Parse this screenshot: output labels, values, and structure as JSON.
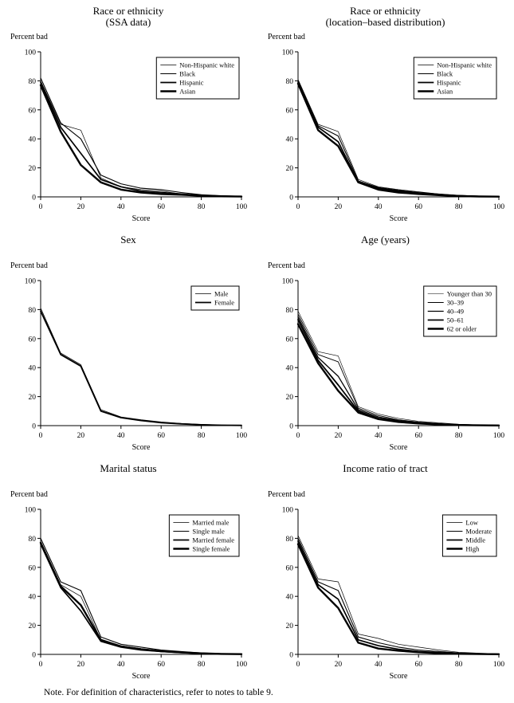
{
  "note": "Note. For definition of characteristics, refer to notes to table 9.",
  "axis": {
    "percent_label": "Percent bad",
    "score_label": "Score",
    "xticks": [
      0,
      20,
      40,
      60,
      80,
      100
    ],
    "yticks": [
      0,
      20,
      40,
      60,
      80,
      100
    ]
  },
  "chart_data": [
    {
      "type": "line",
      "title": "Race or ethnicity",
      "subtitle": "(SSA data)",
      "xlabel": "Score",
      "ylabel": "Percent bad",
      "xlim": [
        0,
        100
      ],
      "ylim": [
        0,
        100
      ],
      "grid": false,
      "legend_position": "top-right",
      "x": [
        0,
        10,
        20,
        30,
        40,
        50,
        60,
        70,
        80,
        90,
        100
      ],
      "series": [
        {
          "name": "Non-Hispanic white",
          "lw": 0.7,
          "values": [
            80,
            50,
            46,
            13,
            7,
            5,
            4,
            2,
            1,
            0.5,
            0.3
          ]
        },
        {
          "name": "Black",
          "lw": 1.1,
          "values": [
            82,
            51,
            40,
            15,
            9,
            6,
            5,
            3,
            1.5,
            0.8,
            0.4
          ]
        },
        {
          "name": "Hispanic",
          "lw": 1.7,
          "values": [
            79,
            48,
            30,
            12,
            7,
            4,
            3,
            2,
            1,
            0.5,
            0.2
          ]
        },
        {
          "name": "Asian",
          "lw": 2.4,
          "values": [
            77,
            45,
            22,
            10,
            5,
            3,
            2,
            1.5,
            0.8,
            0.4,
            0.2
          ]
        }
      ]
    },
    {
      "type": "line",
      "title": "Race or ethnicity",
      "subtitle": "(location–based distribution)",
      "xlabel": "Score",
      "ylabel": "Percent bad",
      "xlim": [
        0,
        100
      ],
      "ylim": [
        0,
        100
      ],
      "grid": false,
      "legend_position": "top-right",
      "x": [
        0,
        10,
        20,
        30,
        40,
        50,
        60,
        70,
        80,
        90,
        100
      ],
      "series": [
        {
          "name": "Non-Hispanic white",
          "lw": 0.7,
          "values": [
            81,
            50,
            45,
            12,
            7,
            5,
            3.5,
            2,
            1,
            0.5,
            0.3
          ]
        },
        {
          "name": "Black",
          "lw": 1.1,
          "values": [
            80,
            49,
            42,
            11,
            6.5,
            4.5,
            3,
            2,
            1,
            0.5,
            0.3
          ]
        },
        {
          "name": "Hispanic",
          "lw": 1.7,
          "values": [
            79,
            48,
            38,
            10,
            6,
            4,
            2.5,
            1.5,
            0.8,
            0.4,
            0.2
          ]
        },
        {
          "name": "Asian",
          "lw": 2.4,
          "values": [
            78,
            46,
            35,
            10,
            5,
            3,
            2,
            1.2,
            0.6,
            0.3,
            0.15
          ]
        }
      ]
    },
    {
      "type": "line",
      "title": "Sex",
      "subtitle": "",
      "xlabel": "Score",
      "ylabel": "Percent bad",
      "xlim": [
        0,
        100
      ],
      "ylim": [
        0,
        100
      ],
      "grid": false,
      "legend_position": "top-right",
      "x": [
        0,
        10,
        20,
        30,
        40,
        50,
        60,
        70,
        80,
        90,
        100
      ],
      "series": [
        {
          "name": "Male",
          "lw": 0.8,
          "values": [
            81,
            50,
            42,
            11,
            6,
            4,
            2.5,
            1.5,
            0.8,
            0.4,
            0.2
          ]
        },
        {
          "name": "Female",
          "lw": 1.8,
          "values": [
            79,
            49,
            41,
            10,
            5.5,
            3.5,
            2,
            1.2,
            0.6,
            0.3,
            0.15
          ]
        }
      ]
    },
    {
      "type": "line",
      "title": "Age (years)",
      "subtitle": "",
      "xlabel": "Score",
      "ylabel": "Percent bad",
      "xlim": [
        0,
        100
      ],
      "ylim": [
        0,
        100
      ],
      "grid": false,
      "legend_position": "top-right",
      "x": [
        0,
        10,
        20,
        30,
        40,
        50,
        60,
        70,
        80,
        90,
        100
      ],
      "series": [
        {
          "name": "Younger than 30",
          "lw": 0.6,
          "values": [
            79,
            51,
            48,
            13,
            8,
            5,
            3,
            2,
            1,
            0.5,
            0.3
          ]
        },
        {
          "name": "30–39",
          "lw": 0.9,
          "values": [
            77,
            49,
            44,
            12,
            7,
            4,
            2.5,
            1.5,
            0.8,
            0.4,
            0.2
          ]
        },
        {
          "name": "40–49",
          "lw": 1.3,
          "values": [
            75,
            47,
            34,
            11,
            6,
            3.5,
            2,
            1.2,
            0.6,
            0.3,
            0.15
          ]
        },
        {
          "name": "50–61",
          "lw": 1.8,
          "values": [
            73,
            45,
            28,
            10,
            5,
            3,
            1.8,
            1,
            0.5,
            0.25,
            0.1
          ]
        },
        {
          "name": "62 or older",
          "lw": 2.4,
          "values": [
            70,
            43,
            24,
            9,
            4.5,
            2.5,
            1.5,
            0.8,
            0.4,
            0.2,
            0.1
          ]
        }
      ]
    },
    {
      "type": "line",
      "title": "Marital status",
      "subtitle": "",
      "xlabel": "Score",
      "ylabel": "Percent bad",
      "xlim": [
        0,
        100
      ],
      "ylim": [
        0,
        100
      ],
      "grid": false,
      "legend_position": "top-right",
      "x": [
        0,
        10,
        20,
        30,
        40,
        50,
        60,
        70,
        80,
        90,
        100
      ],
      "series": [
        {
          "name": "Married male",
          "lw": 0.7,
          "values": [
            78,
            48,
            40,
            10,
            6,
            4,
            2.5,
            1.5,
            0.8,
            0.4,
            0.2
          ]
        },
        {
          "name": "Single male",
          "lw": 1.1,
          "values": [
            80,
            50,
            44,
            12,
            7,
            5,
            3,
            2,
            1,
            0.5,
            0.3
          ]
        },
        {
          "name": "Married female",
          "lw": 1.7,
          "values": [
            76,
            46,
            30,
            9,
            5,
            3,
            2,
            1.2,
            0.6,
            0.3,
            0.15
          ]
        },
        {
          "name": "Single female",
          "lw": 2.4,
          "values": [
            77,
            47,
            34,
            10,
            5.5,
            3.5,
            2.2,
            1.3,
            0.7,
            0.35,
            0.18
          ]
        }
      ]
    },
    {
      "type": "line",
      "title": "Income ratio of tract",
      "subtitle": "",
      "xlabel": "Score",
      "ylabel": "Percent bad",
      "xlim": [
        0,
        100
      ],
      "ylim": [
        0,
        100
      ],
      "grid": false,
      "legend_position": "top-right",
      "x": [
        0,
        10,
        20,
        30,
        40,
        50,
        60,
        70,
        80,
        90,
        100
      ],
      "series": [
        {
          "name": "Low",
          "lw": 0.7,
          "values": [
            82,
            52,
            50,
            14,
            11,
            7,
            5,
            3,
            1.5,
            0.8,
            0.4
          ]
        },
        {
          "name": "Moderate",
          "lw": 1.1,
          "values": [
            80,
            50,
            44,
            12,
            8,
            5,
            3,
            2,
            1,
            0.5,
            0.3
          ]
        },
        {
          "name": "Middle",
          "lw": 1.7,
          "values": [
            78,
            48,
            38,
            10,
            6,
            3.5,
            2,
            1.2,
            0.6,
            0.3,
            0.15
          ]
        },
        {
          "name": "High",
          "lw": 2.4,
          "values": [
            76,
            46,
            32,
            8,
            4,
            2.5,
            1.5,
            0.8,
            0.4,
            0.2,
            0.1
          ]
        }
      ]
    }
  ]
}
